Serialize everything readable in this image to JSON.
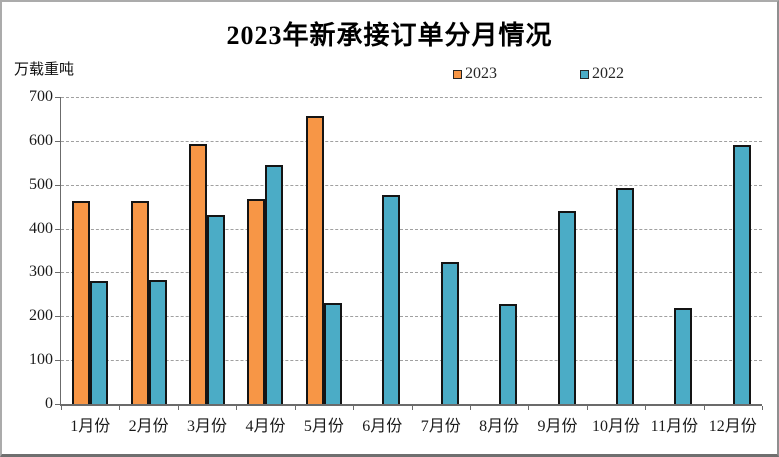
{
  "chart_data": {
    "type": "bar",
    "title": "2023年新承接订单分月情况",
    "ylabel": "万载重吨",
    "xlabel": "",
    "ylim": [
      0,
      700
    ],
    "yticks": [
      0,
      100,
      200,
      300,
      400,
      500,
      600,
      700
    ],
    "grid": "horizontal-dashed",
    "legend_position": "top-right",
    "categories": [
      "1月份",
      "2月份",
      "3月份",
      "4月份",
      "5月份",
      "6月份",
      "7月份",
      "8月份",
      "9月份",
      "10月份",
      "11月份",
      "12月份"
    ],
    "series": [
      {
        "name": "2023",
        "color": "#F79646",
        "values": [
          462,
          464,
          594,
          468,
          657,
          null,
          null,
          null,
          null,
          null,
          null,
          null
        ]
      },
      {
        "name": "2022",
        "color": "#4BACC6",
        "values": [
          281,
          283,
          430,
          545,
          230,
          476,
          324,
          229,
          440,
          492,
          220,
          590
        ]
      }
    ]
  },
  "colors": {
    "bar_2023": "#F79646",
    "bar_2022": "#4BACC6",
    "bar_border": "#141414",
    "gridline": "#a0a0a0",
    "axis": "#6b6b6b",
    "text": "#1a1a1a",
    "background": "#ffffff"
  }
}
